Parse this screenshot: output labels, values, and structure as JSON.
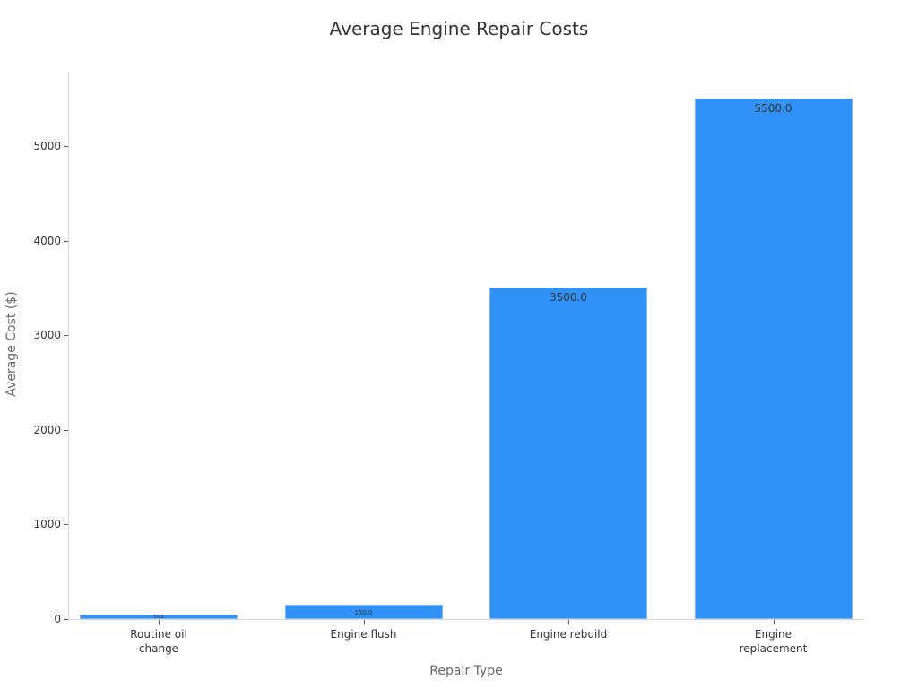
{
  "chart_data": {
    "type": "bar",
    "title": "Average Engine Repair Costs",
    "xlabel": "Repair Type",
    "ylabel": "Average Cost ($)",
    "categories": [
      "Routine oil\nchange",
      "Engine flush",
      "Engine rebuild",
      "Engine\nreplacement"
    ],
    "values": [
      50.0,
      150.0,
      3500.0,
      5500.0
    ],
    "value_labels": [
      "50.0",
      "150.0",
      "3500.0",
      "5500.0"
    ],
    "ylim": [
      0,
      5800
    ],
    "yticks": [
      0,
      1000,
      2000,
      3000,
      4000,
      5000
    ],
    "ytick_labels": [
      "0",
      "1000",
      "2000",
      "3000",
      "4000",
      "5000"
    ],
    "grid": false,
    "legend": null,
    "bar_color": "#3091f7"
  }
}
